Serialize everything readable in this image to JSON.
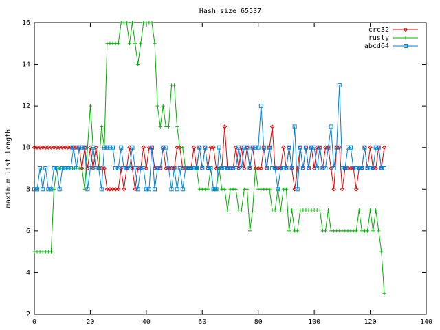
{
  "chart_data": {
    "type": "line",
    "title": "Hash size 65537",
    "y_label": "maximum list length",
    "x": [
      0,
      1,
      2,
      3,
      4,
      5,
      6,
      7,
      8,
      9,
      10,
      11,
      12,
      13,
      14,
      15,
      16,
      17,
      18,
      19,
      20,
      21,
      22,
      23,
      24,
      25,
      26,
      27,
      28,
      29,
      30,
      31,
      32,
      33,
      34,
      35,
      36,
      37,
      38,
      39,
      40,
      41,
      42,
      43,
      44,
      45,
      46,
      47,
      48,
      49,
      50,
      51,
      52,
      53,
      54,
      55,
      56,
      57,
      58,
      59,
      60,
      61,
      62,
      63,
      64,
      65,
      66,
      67,
      68,
      69,
      70,
      71,
      72,
      73,
      74,
      75,
      76,
      77,
      78,
      79,
      80,
      81,
      82,
      83,
      84,
      85,
      86,
      87,
      88,
      89,
      90,
      91,
      92,
      93,
      94,
      95,
      96,
      97,
      98,
      99,
      100,
      101,
      102,
      103,
      104,
      105,
      106,
      107,
      108,
      109,
      110,
      111,
      112,
      113,
      114,
      115,
      116,
      117,
      118,
      119,
      120,
      121,
      122,
      123,
      124,
      125
    ],
    "series": [
      {
        "name": "crc32",
        "color": "#e00000",
        "marker": "diamond",
        "values": [
          10,
          10,
          10,
          10,
          10,
          10,
          10,
          10,
          10,
          10,
          10,
          10,
          10,
          10,
          10,
          10,
          10,
          9,
          10,
          9,
          10,
          9,
          10,
          9,
          9,
          9,
          8,
          8,
          8,
          8,
          8,
          9,
          8,
          9,
          10,
          9,
          8,
          9,
          9,
          10,
          9,
          10,
          10,
          9,
          9,
          9,
          10,
          9,
          9,
          9,
          9,
          10,
          10,
          9,
          9,
          9,
          9,
          10,
          9,
          10,
          9,
          10,
          9,
          10,
          10,
          9,
          9,
          9,
          11,
          9,
          9,
          9,
          10,
          9,
          10,
          9,
          10,
          9,
          10,
          9,
          9,
          9,
          10,
          9,
          10,
          11,
          9,
          9,
          9,
          10,
          9,
          10,
          9,
          8,
          9,
          10,
          9,
          10,
          9,
          10,
          9,
          10,
          10,
          9,
          10,
          10,
          9,
          8,
          10,
          10,
          8,
          9,
          9,
          9,
          9,
          8,
          9,
          9,
          10,
          9,
          10,
          9,
          9,
          10,
          9,
          10
        ]
      },
      {
        "name": "rusty",
        "color": "#00b000",
        "marker": "plus",
        "values": [
          5,
          5,
          5,
          5,
          5,
          5,
          5,
          8,
          9,
          9,
          9,
          9,
          9,
          9,
          9,
          9,
          9,
          9,
          8,
          10,
          12,
          10,
          9,
          9,
          11,
          10,
          15,
          15,
          15,
          15,
          15,
          16,
          16,
          16,
          15,
          16,
          15,
          14,
          15,
          16,
          16,
          16,
          16,
          15,
          12,
          11,
          12,
          11,
          11,
          13,
          13,
          11,
          10,
          10,
          9,
          9,
          9,
          9,
          9,
          8,
          8,
          8,
          8,
          9,
          8,
          8,
          9,
          8,
          8,
          7,
          8,
          8,
          8,
          7,
          7,
          8,
          8,
          6,
          7,
          9,
          8,
          8,
          8,
          8,
          8,
          7,
          7,
          8,
          7,
          8,
          8,
          6,
          7,
          6,
          6,
          7,
          7,
          7,
          7,
          7,
          7,
          7,
          7,
          6,
          6,
          7,
          6,
          6,
          6,
          6,
          6,
          6,
          6,
          6,
          6,
          6,
          7,
          6,
          6,
          6,
          7,
          6,
          7,
          6,
          5,
          3
        ]
      },
      {
        "name": "abcd64",
        "color": "#0080e0",
        "marker": "square",
        "values": [
          8,
          8,
          9,
          8,
          9,
          8,
          8,
          9,
          9,
          8,
          9,
          9,
          9,
          9,
          10,
          9,
          10,
          10,
          10,
          8,
          9,
          10,
          9,
          9,
          8,
          10,
          10,
          10,
          10,
          9,
          9,
          10,
          9,
          9,
          9,
          10,
          9,
          8,
          9,
          9,
          8,
          8,
          10,
          8,
          9,
          9,
          10,
          10,
          9,
          8,
          9,
          8,
          9,
          8,
          9,
          9,
          9,
          9,
          9,
          10,
          9,
          10,
          9,
          9,
          8,
          8,
          10,
          9,
          9,
          9,
          9,
          9,
          9,
          10,
          9,
          10,
          10,
          9,
          10,
          10,
          10,
          12,
          10,
          9,
          10,
          9,
          9,
          8,
          9,
          9,
          9,
          10,
          9,
          11,
          8,
          10,
          9,
          10,
          9,
          10,
          10,
          9,
          10,
          9,
          9,
          10,
          11,
          9,
          10,
          13,
          9,
          9,
          10,
          10,
          9,
          9,
          9,
          9,
          10,
          9,
          9,
          9,
          10,
          10,
          9,
          9
        ]
      }
    ],
    "xlim": [
      0,
      140
    ],
    "xticks": [
      0,
      20,
      40,
      60,
      80,
      100,
      120,
      140
    ],
    "ylim": [
      2,
      16
    ],
    "yticks": [
      2,
      4,
      6,
      8,
      10,
      12,
      14,
      16
    ],
    "legend": "upper right"
  }
}
